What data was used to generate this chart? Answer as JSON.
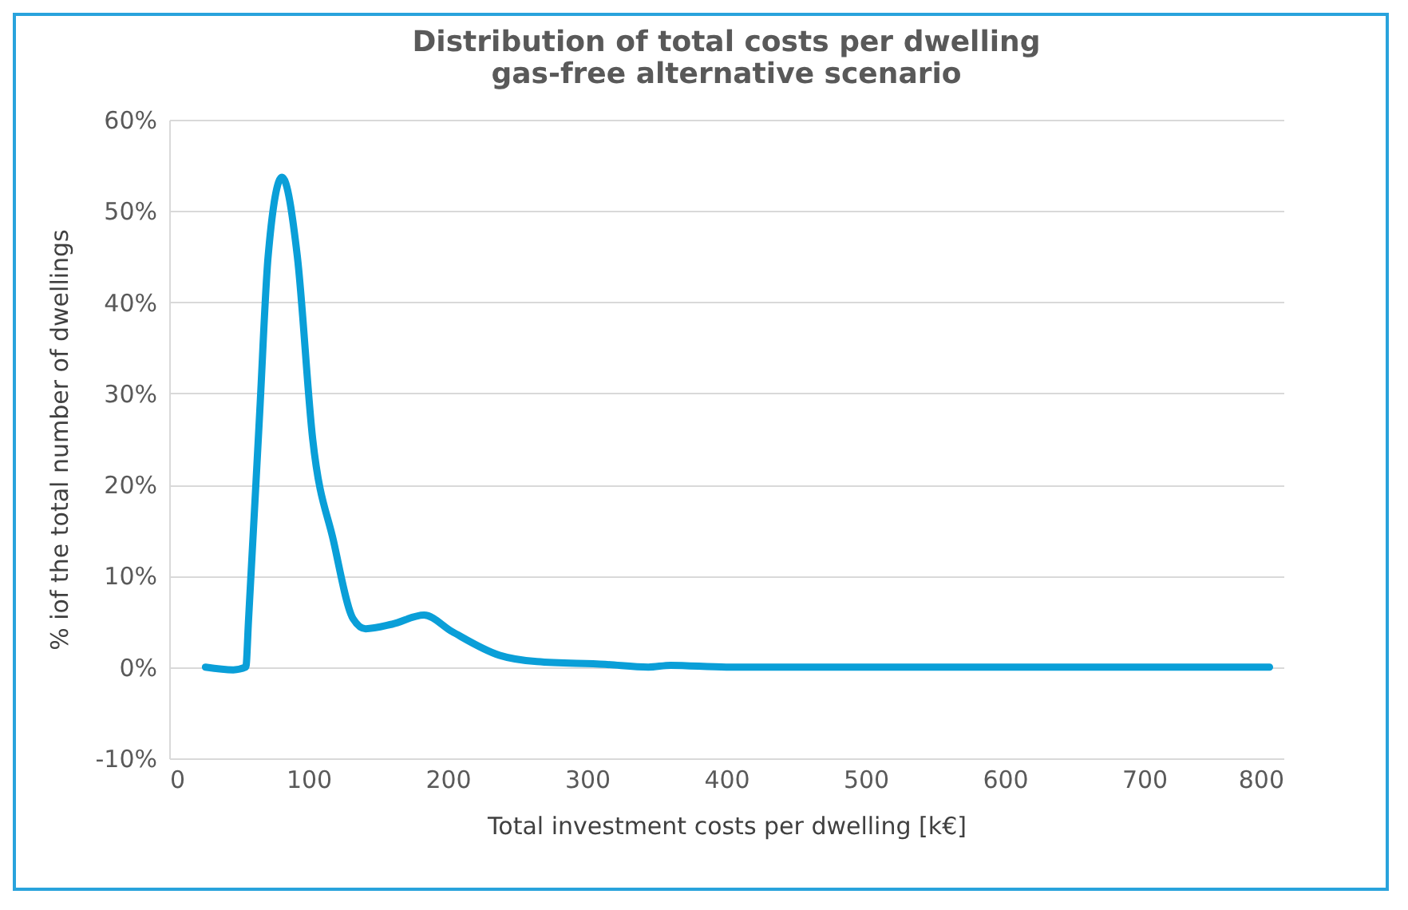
{
  "chart_data": {
    "type": "line",
    "title": "Distribution of total costs per dwelling",
    "subtitle": "gas-free alternative scenario",
    "xlabel": "Total investment costs per dwelling [k€]",
    "ylabel": "% iof the total number of dwellings",
    "x": [
      26,
      46,
      55,
      57,
      65,
      71,
      81,
      92,
      103,
      118,
      132,
      141,
      160,
      183,
      203,
      237,
      264,
      313,
      344,
      360,
      400,
      500,
      600,
      700,
      790
    ],
    "series": [
      {
        "color": "#0a9fd8",
        "values": [
          0,
          -0.3,
          0,
          5.3,
          28,
          45,
          53.7,
          45,
          25,
          13.8,
          5.3,
          4.2,
          4.7,
          5.7,
          3.9,
          1.3,
          0.6,
          0.3,
          0,
          0.2,
          0,
          0,
          0,
          0,
          0
        ]
      }
    ],
    "xlim": [
      0,
      800
    ],
    "xticks": [
      0,
      100,
      200,
      300,
      400,
      500,
      600,
      700,
      800
    ],
    "ylim": [
      -10,
      60
    ],
    "yticks": [
      {
        "value": -10,
        "label": "-10%"
      },
      {
        "value": 0,
        "label": "0%"
      },
      {
        "value": 10,
        "label": "10%"
      },
      {
        "value": 20,
        "label": "20%"
      },
      {
        "value": 30,
        "label": "30%"
      },
      {
        "value": 40,
        "label": "40%"
      },
      {
        "value": 50,
        "label": "50%"
      },
      {
        "value": 60,
        "label": "60%"
      }
    ],
    "grid": "y",
    "marker": "none",
    "line_style": "solid"
  }
}
